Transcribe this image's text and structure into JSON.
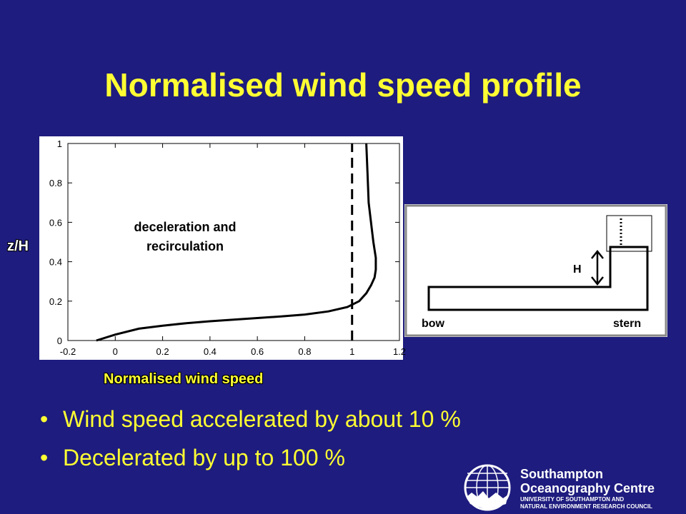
{
  "slide": {
    "title": "Normalised wind speed profile",
    "bullets": [
      "Wind speed accelerated by about 10 %",
      "Decelerated by up to 100 %"
    ]
  },
  "chart_data": {
    "type": "line",
    "xlabel": "Normalised wind speed",
    "ylabel": "z/H",
    "xlim": [
      -0.2,
      1.2
    ],
    "ylim": [
      0,
      1
    ],
    "xticks": [
      "-0.2",
      "0",
      "0.2",
      "0.4",
      "0.6",
      "0.8",
      "1",
      "1.2"
    ],
    "yticks": [
      "0",
      "0.2",
      "0.4",
      "0.6",
      "0.8",
      "1"
    ],
    "grid": false,
    "annotation": [
      "deceleration and",
      "recirculation"
    ],
    "series": [
      {
        "style": "solid",
        "x": [
          -0.08,
          0.0,
          0.1,
          0.2,
          0.3,
          0.4,
          0.5,
          0.6,
          0.7,
          0.8,
          0.9,
          0.98,
          1.03,
          1.06,
          1.08,
          1.095,
          1.1,
          1.1,
          1.09,
          1.08,
          1.07,
          1.065,
          1.06
        ],
        "y": [
          0.0,
          0.03,
          0.06,
          0.075,
          0.088,
          0.098,
          0.106,
          0.114,
          0.122,
          0.132,
          0.148,
          0.17,
          0.2,
          0.24,
          0.28,
          0.32,
          0.36,
          0.42,
          0.5,
          0.6,
          0.7,
          0.85,
          1.0
        ]
      },
      {
        "style": "dashed",
        "x": [
          1.0,
          1.0
        ],
        "y": [
          0.0,
          1.0
        ]
      }
    ]
  },
  "ship_diagram": {
    "height_label": "H",
    "left_label": "bow",
    "right_label": "stern"
  },
  "logo": {
    "line1": "Southampton",
    "line2": "Oceanography Centre",
    "line3": "UNIVERSITY OF SOUTHAMPTON AND",
    "line4": "NATURAL ENVIRONMENT RESEARCH COUNCIL"
  }
}
